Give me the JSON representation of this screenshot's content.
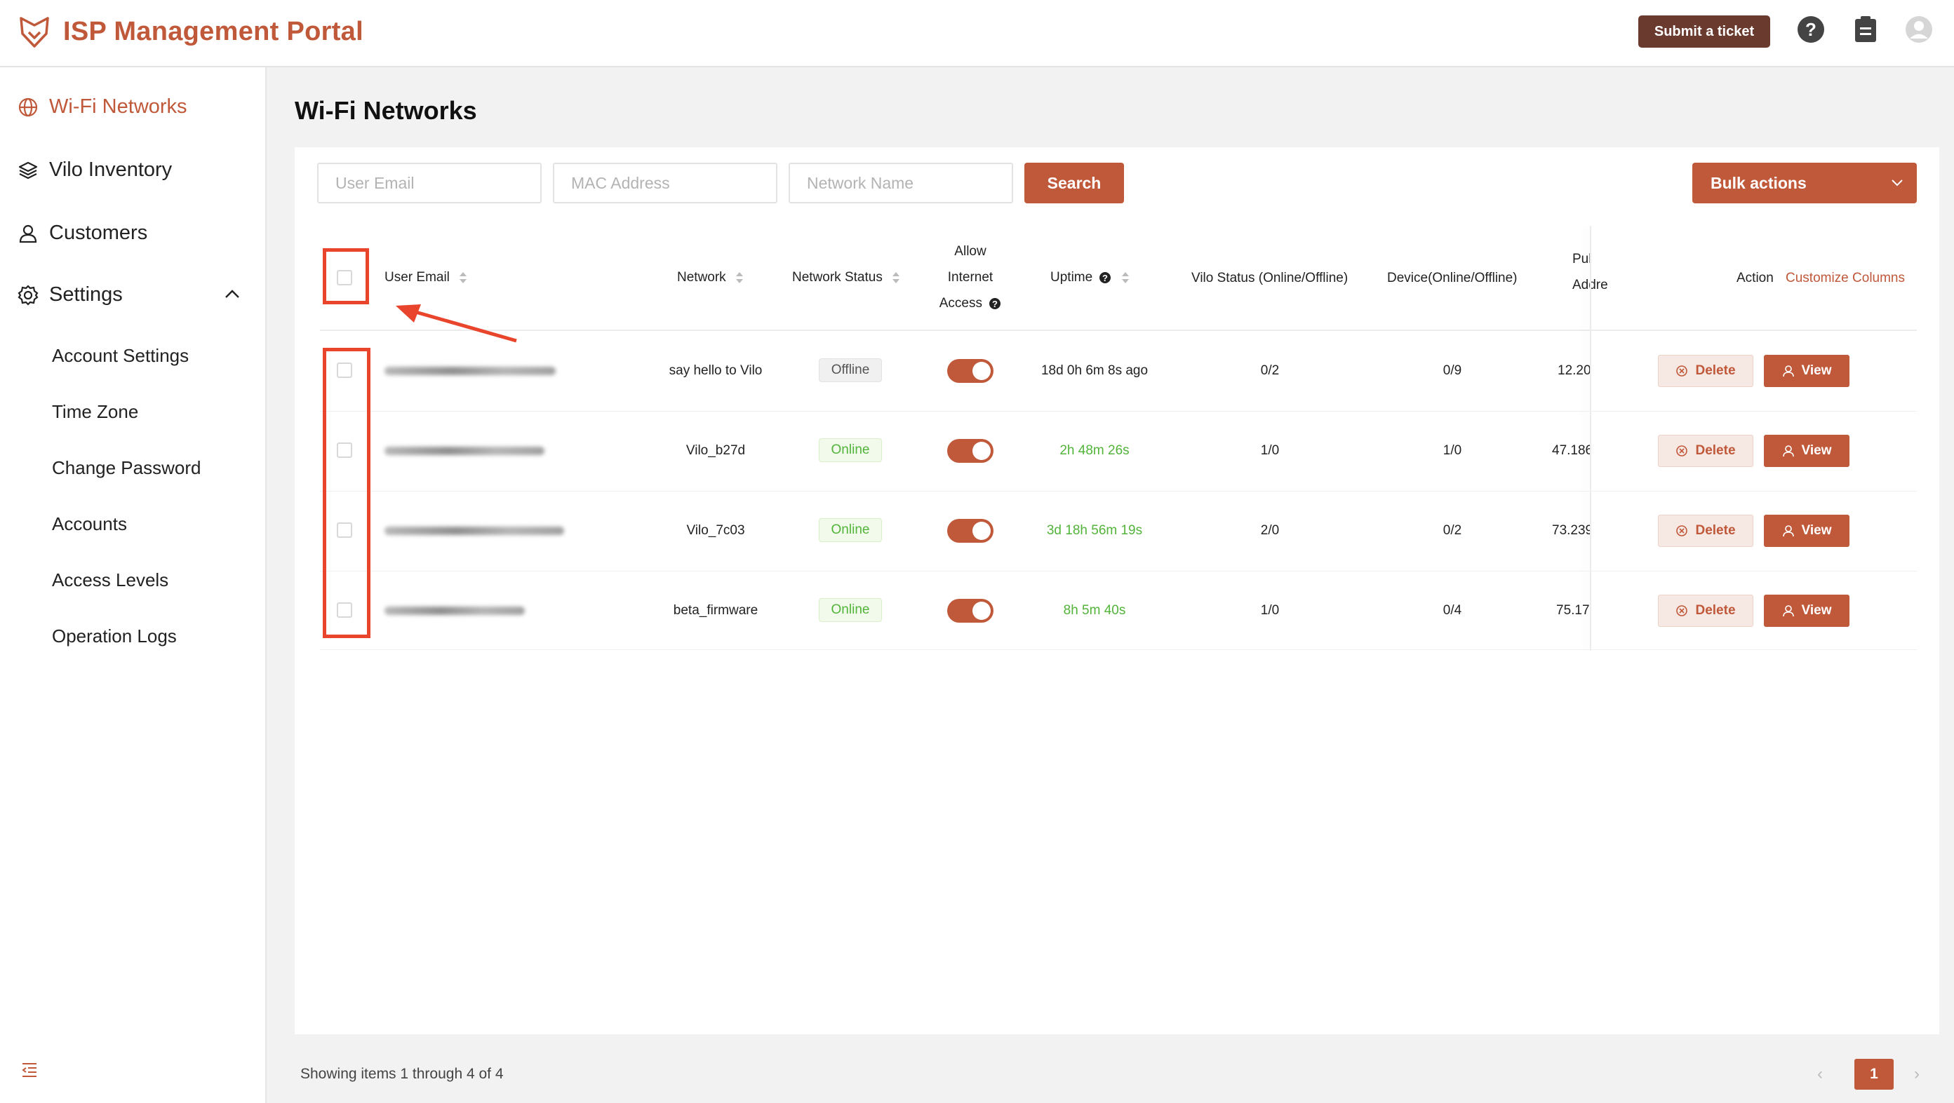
{
  "header": {
    "title": "ISP Management Portal",
    "submit_ticket": "Submit a ticket",
    "icons": [
      "help-icon",
      "clipboard-icon",
      "user-avatar-icon"
    ],
    "accent": "#c0583a"
  },
  "sidebar": {
    "items": [
      {
        "label": "Wi-Fi Networks",
        "icon": "globe-icon",
        "active": true
      },
      {
        "label": "Vilo Inventory",
        "icon": "layers-icon"
      },
      {
        "label": "Customers",
        "icon": "user-icon"
      },
      {
        "label": "Settings",
        "icon": "gear-icon",
        "expanded": true
      }
    ],
    "settings_items": [
      "Account Settings",
      "Time Zone",
      "Change Password",
      "Accounts",
      "Access Levels",
      "Operation Logs"
    ]
  },
  "page": {
    "title": "Wi-Fi Networks"
  },
  "filters": {
    "user_email_placeholder": "User Email",
    "mac_placeholder": "MAC Address",
    "network_name_placeholder": "Network Name",
    "search": "Search",
    "bulk_actions": "Bulk actions"
  },
  "table": {
    "headers": {
      "user_email": "User Email",
      "network": "Network",
      "network_status": "Network Status",
      "allow_1": "Allow",
      "allow_2": "Internet",
      "allow_3": "Access",
      "uptime": "Uptime",
      "vilo_status": "Vilo Status (Online/Offline)",
      "device": "Device(Online/Offline)",
      "public_1": "Pul",
      "public_2": "Addre",
      "action": "Action",
      "customize": "Customize Columns"
    },
    "rows": [
      {
        "network": "say hello to Vilo",
        "status": "Offline",
        "allow_access": true,
        "uptime": "18d 0h 6m 8s ago",
        "vilo": "0/2",
        "device": "0/9",
        "public_ip": "12.20"
      },
      {
        "network": "Vilo_b27d",
        "status": "Online",
        "allow_access": true,
        "uptime": "2h 48m 26s",
        "vilo": "1/0",
        "device": "1/0",
        "public_ip": "47.186"
      },
      {
        "network": "Vilo_7c03",
        "status": "Online",
        "allow_access": true,
        "uptime": "3d 18h 56m 19s",
        "vilo": "2/0",
        "device": "0/2",
        "public_ip": "73.239"
      },
      {
        "network": "beta_firmware",
        "status": "Online",
        "allow_access": true,
        "uptime": "8h 5m 40s",
        "vilo": "1/0",
        "device": "0/4",
        "public_ip": "75.17:"
      }
    ],
    "delete_label": "Delete",
    "view_label": "View"
  },
  "footer": {
    "showing": "Showing items 1 through 4 of 4",
    "current_page": "1"
  },
  "colors": {
    "accent": "#c0583a",
    "online": "#52b43a",
    "annotation": "#e8452c"
  }
}
